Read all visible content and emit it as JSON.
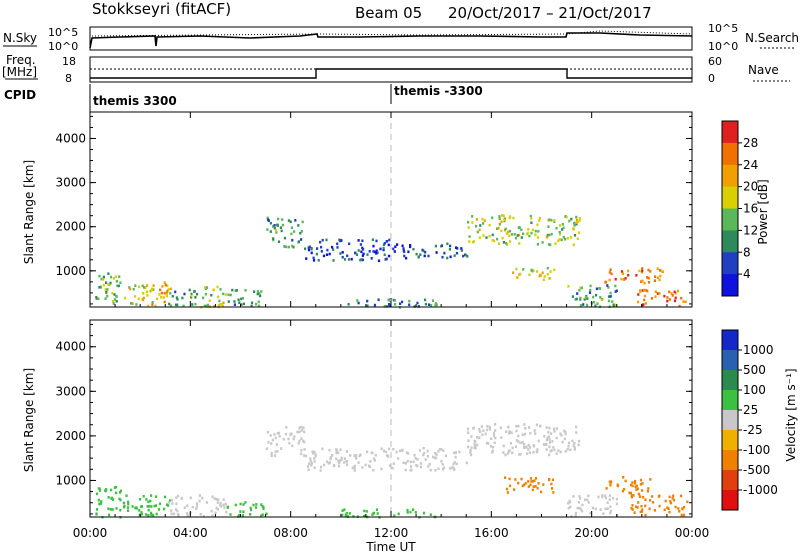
{
  "header": {
    "station": "Stokkseyri (fitACF)",
    "beam": "Beam 05",
    "date_range": "20/Oct/2017 – 21/Oct/2017"
  },
  "panels": {
    "nsky": {
      "left_label": "N.Sky",
      "right_label": "N.Search",
      "left_ticks": [
        "10^5",
        "10^0"
      ],
      "right_ticks": [
        "10^5",
        "10^0"
      ]
    },
    "freq": {
      "left_label": "Freq.",
      "left_unit": "[MHz]",
      "right_label": "Nave",
      "left_ticks": [
        "18",
        "8"
      ],
      "right_ticks": [
        "60",
        "0"
      ]
    },
    "cpid": {
      "label": "CPID",
      "program_1": "themis 3300",
      "program_2": "themis -3300"
    }
  },
  "power_scale": {
    "title": "Power [dB]",
    "ticks": [
      "4",
      "8",
      "12",
      "16",
      "20",
      "24",
      "28"
    ],
    "colors": [
      "#1010e0",
      "#2040c0",
      "#2e8a5a",
      "#5ab85a",
      "#d8d000",
      "#f0a000",
      "#f07000",
      "#e02020"
    ]
  },
  "velocity_scale": {
    "title": "Velocity [m s⁻¹]",
    "ticks": [
      "1000",
      "500",
      "100",
      "25",
      "-25",
      "-100",
      "-500",
      "-1000"
    ],
    "colors": [
      "#1428c8",
      "#2a60b0",
      "#2a8a50",
      "#3cc040",
      "#c8c8c8",
      "#f0b000",
      "#f08000",
      "#e04010",
      "#e01010"
    ]
  },
  "axes": {
    "y_label": "Slant Range [km]",
    "y_ticks": [
      "1000",
      "2000",
      "3000",
      "4000"
    ],
    "x_label": "Time UT",
    "x_ticks": [
      "00:00",
      "04:00",
      "08:00",
      "12:00",
      "16:00",
      "20:00",
      "00:00"
    ]
  },
  "chart_data": [
    {
      "type": "heatmap",
      "name": "power",
      "xlim": [
        0,
        24
      ],
      "ylim": [
        180,
        4600
      ],
      "x_unit": "hours UT",
      "y_unit": "km",
      "blobs": [
        {
          "t0": 0.2,
          "t1": 1.2,
          "r0": 200,
          "r1": 1000,
          "v": 14
        },
        {
          "t0": 1.3,
          "t1": 2.6,
          "r0": 220,
          "r1": 700,
          "v": 18
        },
        {
          "t0": 2.4,
          "t1": 3.2,
          "r0": 250,
          "r1": 800,
          "v": 22
        },
        {
          "t0": 3.1,
          "t1": 4.2,
          "r0": 220,
          "r1": 650,
          "v": 12
        },
        {
          "t0": 4.2,
          "t1": 5.4,
          "r0": 200,
          "r1": 700,
          "v": 16
        },
        {
          "t0": 5.4,
          "t1": 6.8,
          "r0": 230,
          "r1": 600,
          "v": 10
        },
        {
          "t0": 7.0,
          "t1": 8.5,
          "r0": 1550,
          "r1": 2250,
          "v": 12
        },
        {
          "t0": 8.5,
          "t1": 12.0,
          "r0": 1250,
          "r1": 1750,
          "v": 6
        },
        {
          "t0": 12.0,
          "t1": 15.0,
          "r0": 1300,
          "r1": 1650,
          "v": 6
        },
        {
          "t0": 15.0,
          "t1": 19.5,
          "r0": 1600,
          "r1": 2300,
          "v": 16
        },
        {
          "t0": 16.8,
          "t1": 18.5,
          "r0": 800,
          "r1": 1100,
          "v": 20
        },
        {
          "t0": 20.5,
          "t1": 22.8,
          "r0": 750,
          "r1": 1100,
          "v": 24
        },
        {
          "t0": 21.8,
          "t1": 23.8,
          "r0": 200,
          "r1": 600,
          "v": 26
        },
        {
          "t0": 10.0,
          "t1": 13.8,
          "r0": 200,
          "r1": 380,
          "v": 10
        },
        {
          "t0": 19.0,
          "t1": 21.0,
          "r0": 200,
          "r1": 700,
          "v": 12
        }
      ]
    },
    {
      "type": "heatmap",
      "name": "velocity",
      "xlim": [
        0,
        24
      ],
      "ylim": [
        180,
        4600
      ],
      "x_unit": "hours UT",
      "y_unit": "km",
      "blobs": [
        {
          "t0": 0.2,
          "t1": 1.2,
          "r0": 200,
          "r1": 900,
          "v": 60
        },
        {
          "t0": 1.3,
          "t1": 3.2,
          "r0": 220,
          "r1": 700,
          "v": 60
        },
        {
          "t0": 3.1,
          "t1": 5.4,
          "r0": 220,
          "r1": 700,
          "v": 0
        },
        {
          "t0": 5.4,
          "t1": 7.0,
          "r0": 220,
          "r1": 550,
          "v": 60
        },
        {
          "t0": 7.0,
          "t1": 8.5,
          "r0": 1550,
          "r1": 2250,
          "v": 0
        },
        {
          "t0": 8.5,
          "t1": 15.0,
          "r0": 1250,
          "r1": 1750,
          "v": 0
        },
        {
          "t0": 15.0,
          "t1": 19.5,
          "r0": 1600,
          "r1": 2300,
          "v": 0
        },
        {
          "t0": 16.5,
          "t1": 18.5,
          "r0": 750,
          "r1": 1100,
          "v": -300
        },
        {
          "t0": 20.5,
          "t1": 22.3,
          "r0": 700,
          "r1": 1100,
          "v": -250
        },
        {
          "t0": 21.5,
          "t1": 23.8,
          "r0": 250,
          "r1": 700,
          "v": -300
        },
        {
          "t0": 19.0,
          "t1": 21.0,
          "r0": 220,
          "r1": 700,
          "v": 0
        },
        {
          "t0": 10.0,
          "t1": 13.8,
          "r0": 200,
          "r1": 380,
          "v": 60
        }
      ]
    }
  ]
}
